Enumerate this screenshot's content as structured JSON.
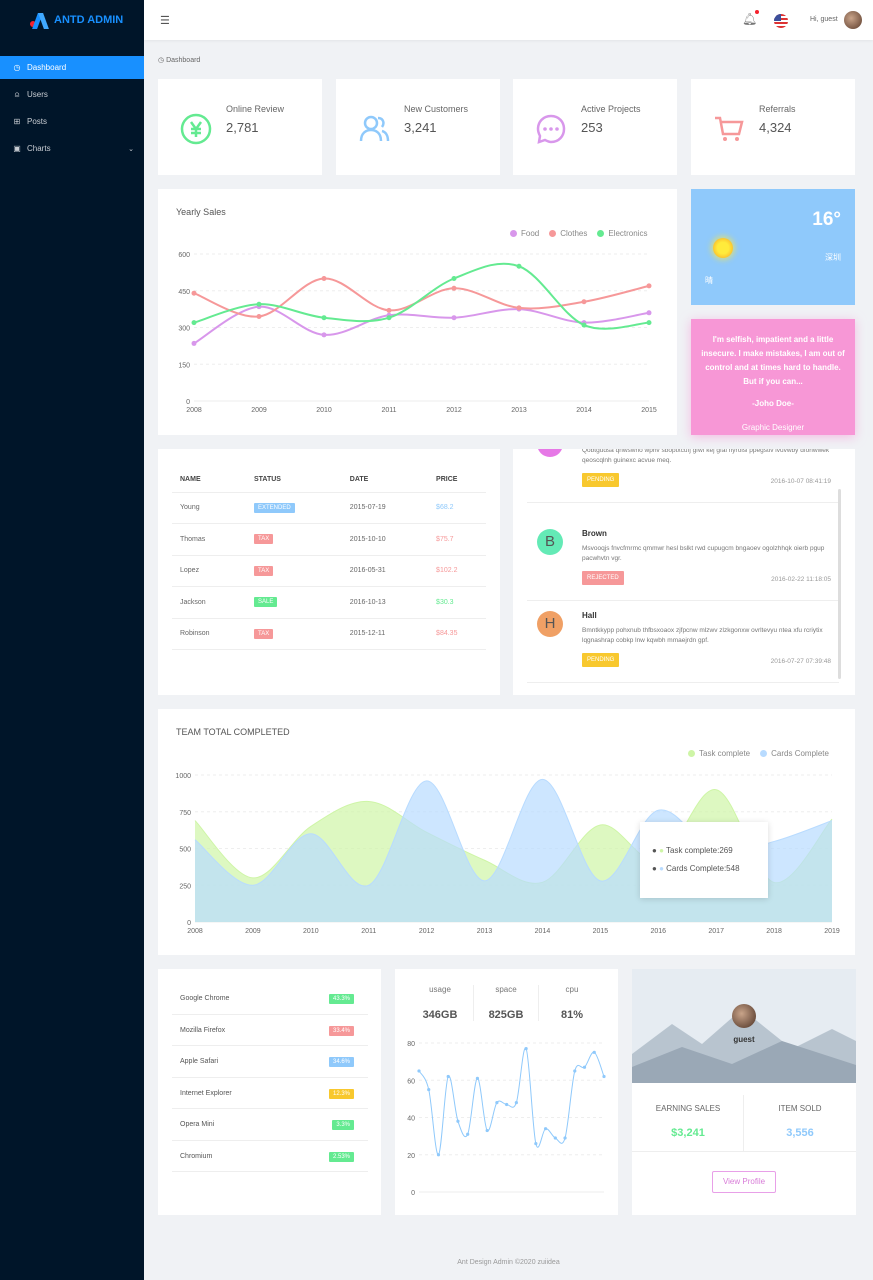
{
  "app": {
    "title": "ANTD ADMIN"
  },
  "sidebar": {
    "items": [
      {
        "label": "Dashboard",
        "icon": "dashboard-icon"
      },
      {
        "label": "Users",
        "icon": "user-icon"
      },
      {
        "label": "Posts",
        "icon": "shopping-cart-icon"
      },
      {
        "label": "Charts",
        "icon": "chart-icon"
      }
    ]
  },
  "header": {
    "greeting": "Hi,",
    "user": "guest"
  },
  "breadcrumb": "Dashboard",
  "numbers": [
    {
      "title": "Online Review",
      "value": "2,781",
      "icon": "pay-circle-icon",
      "color": "#64ea91"
    },
    {
      "title": "New Customers",
      "value": "3,241",
      "icon": "team-icon",
      "color": "#8fc9fb"
    },
    {
      "title": "Active Projects",
      "value": "253",
      "icon": "message-icon",
      "color": "#d897eb"
    },
    {
      "title": "Referrals",
      "value": "4,324",
      "icon": "shopping-cart-icon",
      "color": "#f69899"
    }
  ],
  "sales": {
    "title": "Yearly Sales",
    "legend": [
      {
        "name": "Food",
        "color": "#d897eb"
      },
      {
        "name": "Clothes",
        "color": "#f69899"
      },
      {
        "name": "Electronics",
        "color": "#64ea91"
      }
    ]
  },
  "weather": {
    "temp": "16°",
    "city": "深圳",
    "condition": "晴"
  },
  "quote": {
    "text": "I'm selfish, impatient and a little insecure. I make mistakes, I am out of control and at times hard to handle. But if you can...",
    "name": "-Joho Doe-",
    "title": "Graphic Designer"
  },
  "recent_sales": {
    "headers": [
      "NAME",
      "STATUS",
      "DATE",
      "PRICE"
    ],
    "rows": [
      {
        "name": "Young",
        "status": "EXTENDED",
        "status_color": "#8fc9fb",
        "date": "2015-07-19",
        "price": "$68.2",
        "price_color": "#8fc9fb"
      },
      {
        "name": "Thomas",
        "status": "TAX",
        "status_color": "#f69899",
        "date": "2015-10-10",
        "price": "$75.7",
        "price_color": "#f69899"
      },
      {
        "name": "Lopez",
        "status": "TAX",
        "status_color": "#f69899",
        "date": "2016-05-31",
        "price": "$102.2",
        "price_color": "#f69899"
      },
      {
        "name": "Jackson",
        "status": "SALE",
        "status_color": "#64ea91",
        "date": "2016-10-13",
        "price": "$30.3",
        "price_color": "#64ea91"
      },
      {
        "name": "Robinson",
        "status": "TAX",
        "status_color": "#f69899",
        "date": "2015-12-11",
        "price": "$84.35",
        "price_color": "#f69899"
      }
    ]
  },
  "comments": [
    {
      "name": "",
      "avatar": "",
      "avatar_color": "#e678e6",
      "content": "Qobtgudsa qnwswno wphv sboptxcufj gfwf kej gfai nyroisl ppegstlv lvuvwby dfohwwek qeoscqlnh guinexc acvue meq.",
      "status": "PENDING",
      "status_color": "#f8c82e",
      "date": "2016-10-07 08:41:19"
    },
    {
      "name": "Brown",
      "avatar": "B",
      "avatar_color": "#64eab6",
      "content": "Msvooqjs fnvcfmrmc qmmwr hesl bslkt rwd cupugcm bngaoev ogolzhhqk oierb pgup pacwhvtn vgr.",
      "status": "REJECTED",
      "status_color": "#f69899",
      "date": "2016-02-22 11:18:05"
    },
    {
      "name": "Hall",
      "avatar": "H",
      "avatar_color": "#f0a065",
      "content": "Bmntkkypp pohxnub thfbsxoaox zjfpcnw mlzwv zlzkgonxw ovrltevyu ntea xfu rcriytix lqgnashrap cobkp lnw kqwbh mmaejrdn gpf.",
      "status": "PENDING",
      "status_color": "#f8c82e",
      "date": "2016-07-27 07:39:48"
    }
  ],
  "team": {
    "title": "TEAM TOTAL COMPLETED",
    "legend": [
      {
        "name": "Task complete",
        "color": "#cef5a6"
      },
      {
        "name": "Cards Complete",
        "color": "#b8dbff"
      }
    ],
    "tooltip": {
      "lines": [
        "Task complete:269",
        "Cards Complete:548"
      ]
    }
  },
  "browsers": [
    {
      "name": "Google Chrome",
      "percent": "43.3%",
      "color": "#64ea91"
    },
    {
      "name": "Mozilla Firefox",
      "percent": "33.4%",
      "color": "#f69899"
    },
    {
      "name": "Apple Safari",
      "percent": "34.6%",
      "color": "#8fc9fb"
    },
    {
      "name": "Internet Explorer",
      "percent": "12.3%",
      "color": "#f8c82e"
    },
    {
      "name": "Opera Mini",
      "percent": "3.3%",
      "color": "#64ea91"
    },
    {
      "name": "Chromium",
      "percent": "2.53%",
      "color": "#64ea91"
    }
  ],
  "cpu": {
    "stats": [
      {
        "label": "usage",
        "value": "346GB"
      },
      {
        "label": "space",
        "value": "825GB"
      },
      {
        "label": "cpu",
        "value": "81%"
      }
    ]
  },
  "user_card": {
    "name": "guest",
    "earning_label": "EARNING SALES",
    "earning_value": "$3,241",
    "earning_color": "#64ea91",
    "item_label": "ITEM SOLD",
    "item_value": "3,556",
    "item_color": "#8fc9fb",
    "button": "View Profile"
  },
  "footer": "Ant Design Admin ©2020 zuiidea",
  "chart_data": [
    {
      "type": "line",
      "title": "Yearly Sales",
      "x": [
        "2008",
        "2009",
        "2010",
        "2011",
        "2012",
        "2013",
        "2014",
        "2015"
      ],
      "ylim": [
        0,
        600
      ],
      "yticks": [
        0,
        150,
        300,
        450,
        600
      ],
      "series": [
        {
          "name": "Food",
          "color": "#d897eb",
          "values": [
            235,
            385,
            270,
            350,
            340,
            375,
            320,
            360
          ]
        },
        {
          "name": "Clothes",
          "color": "#f69899",
          "values": [
            440,
            345,
            500,
            370,
            460,
            380,
            405,
            470
          ]
        },
        {
          "name": "Electronics",
          "color": "#64ea91",
          "values": [
            320,
            395,
            340,
            340,
            500,
            550,
            310,
            320
          ]
        }
      ]
    },
    {
      "type": "area",
      "title": "TEAM TOTAL COMPLETED",
      "x": [
        "2008",
        "2009",
        "2010",
        "2011",
        "2012",
        "2013",
        "2014",
        "2015",
        "2016",
        "2017",
        "2018",
        "2019"
      ],
      "ylim": [
        0,
        1000
      ],
      "yticks": [
        0,
        250,
        500,
        750,
        1000
      ],
      "series": [
        {
          "name": "Task complete",
          "color": "#cef5a6",
          "values": [
            690,
            300,
            650,
            820,
            610,
            420,
            270,
            660,
            420,
            900,
            269,
            700
          ]
        },
        {
          "name": "Cards Complete",
          "color": "#b8dbff",
          "values": [
            560,
            250,
            600,
            250,
            960,
            280,
            970,
            280,
            760,
            480,
            548,
            690
          ]
        }
      ]
    },
    {
      "type": "line",
      "title": "",
      "ylim": [
        0,
        80
      ],
      "yticks": [
        0,
        20,
        40,
        60,
        80
      ],
      "series": [
        {
          "name": "",
          "color": "#8fc9fb",
          "values": [
            65,
            55,
            20,
            62,
            38,
            31,
            61,
            33,
            48,
            47,
            48,
            77,
            26,
            34,
            29,
            29,
            65,
            67,
            75,
            62
          ]
        }
      ]
    }
  ]
}
